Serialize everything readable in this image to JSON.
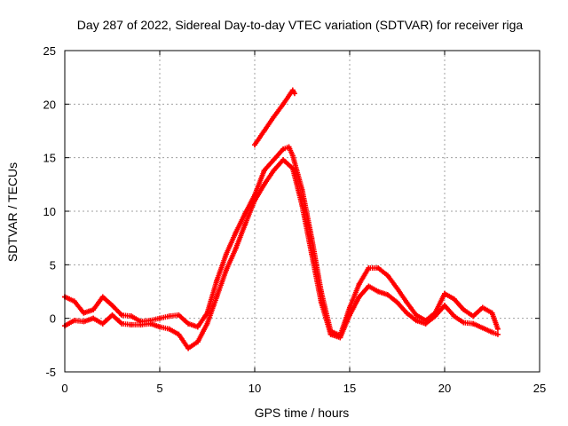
{
  "chart_data": {
    "type": "scatter",
    "title": "Day 287 of 2022, Sidereal Day-to-day VTEC variation (SDTVAR) for receiver riga",
    "xlabel": "GPS time / hours",
    "ylabel": "SDTVAR / TECUs",
    "xlim": [
      0,
      25
    ],
    "ylim": [
      -5,
      25
    ],
    "xticks": [
      0,
      5,
      10,
      15,
      20,
      25
    ],
    "yticks": [
      -5,
      0,
      5,
      10,
      15,
      20,
      25
    ],
    "xtick_labels": [
      "0",
      "5",
      "10",
      "15",
      "20",
      "25"
    ],
    "ytick_labels": [
      "-5",
      "0",
      "5",
      "10",
      "15",
      "20",
      "25"
    ],
    "grid": true,
    "marker": "+",
    "series": [
      {
        "name": "upper-track",
        "color": "#ff0000",
        "x": [
          0.0,
          0.5,
          1.0,
          1.5,
          2.0,
          2.5,
          3.0,
          3.5,
          4.0,
          4.5,
          5.0,
          5.5,
          6.0,
          6.5,
          7.0,
          7.5,
          8.0,
          8.5,
          9.0,
          9.5,
          10.0,
          10.5,
          11.0,
          11.5,
          11.8,
          12.0,
          12.5,
          13.0,
          13.5,
          14.0,
          14.5,
          15.0,
          15.5,
          16.0,
          16.5,
          17.0,
          17.5,
          18.0,
          18.5,
          19.0,
          19.5,
          20.0,
          20.5,
          21.0,
          21.5,
          22.0,
          22.5,
          22.8
        ],
        "y": [
          2.0,
          1.6,
          0.5,
          0.8,
          2.0,
          1.2,
          0.3,
          0.2,
          -0.3,
          -0.2,
          0.0,
          0.2,
          0.3,
          -0.5,
          -0.8,
          0.5,
          3.5,
          6.0,
          8.0,
          9.8,
          11.5,
          13.8,
          14.8,
          15.8,
          16.0,
          15.2,
          12.0,
          7.5,
          2.5,
          -1.2,
          -1.6,
          1.0,
          3.2,
          4.7,
          4.7,
          4.0,
          2.8,
          1.5,
          0.3,
          -0.2,
          0.5,
          2.3,
          1.8,
          0.8,
          0.2,
          1.0,
          0.5,
          -1.0
        ]
      },
      {
        "name": "lower-track",
        "color": "#ff0000",
        "x": [
          0.0,
          0.5,
          1.0,
          1.5,
          2.0,
          2.5,
          3.0,
          3.5,
          4.0,
          4.5,
          5.0,
          5.5,
          6.0,
          6.5,
          7.0,
          7.5,
          8.0,
          8.5,
          9.0,
          9.5,
          10.0,
          10.5,
          11.0,
          11.5,
          12.0,
          12.5,
          13.0,
          13.5,
          14.0,
          14.5,
          15.0,
          15.5,
          16.0,
          16.5,
          17.0,
          17.5,
          18.0,
          18.5,
          19.0,
          19.5,
          20.0,
          20.5,
          21.0,
          21.5,
          22.0,
          22.5,
          22.8
        ],
        "y": [
          -0.7,
          -0.2,
          -0.3,
          0.0,
          -0.5,
          0.3,
          -0.5,
          -0.6,
          -0.6,
          -0.5,
          -0.8,
          -1.0,
          -1.5,
          -2.8,
          -2.2,
          -0.5,
          2.0,
          4.5,
          6.5,
          8.8,
          11.0,
          12.5,
          13.8,
          14.8,
          14.0,
          10.5,
          6.0,
          1.5,
          -1.5,
          -1.8,
          0.3,
          2.0,
          3.0,
          2.5,
          2.2,
          1.5,
          0.5,
          -0.2,
          -0.5,
          0.2,
          1.2,
          0.2,
          -0.4,
          -0.5,
          -0.9,
          -1.3,
          -1.5
        ]
      },
      {
        "name": "upper-peak-segment",
        "color": "#ff0000",
        "x": [
          10.0,
          10.5,
          11.0,
          11.5,
          12.0,
          12.1
        ],
        "y": [
          16.2,
          17.5,
          18.8,
          20.0,
          21.3,
          21.0
        ]
      }
    ]
  }
}
